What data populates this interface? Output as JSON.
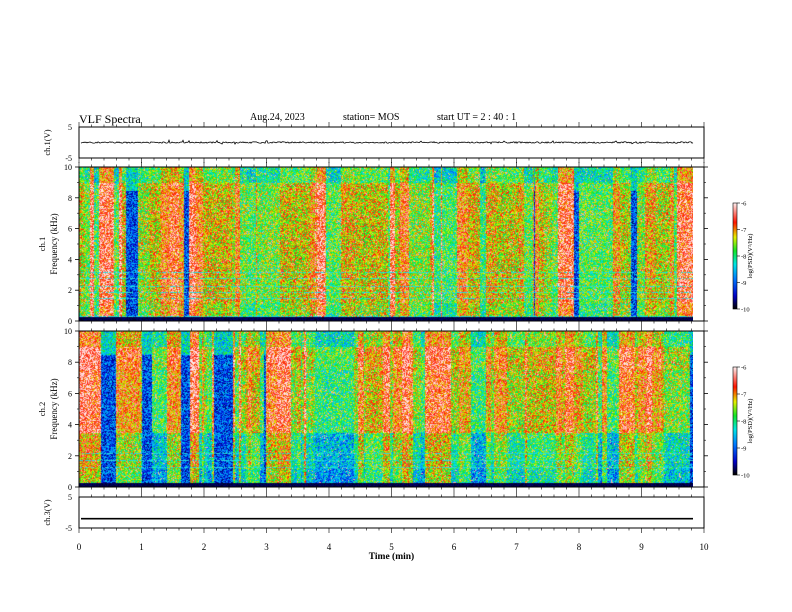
{
  "chart_data": [
    {
      "type": "line",
      "panel": "ch1-waveform",
      "ylabel": "ch.1(V)",
      "ylim": [
        -5,
        5
      ],
      "yticks": [
        "5",
        "-5"
      ],
      "xlim": [
        0,
        10
      ],
      "baseline": 0
    },
    {
      "type": "heatmap",
      "panel": "ch1-spectrogram",
      "ylabel": "ch.1\nFrequency (kHz)",
      "ylim": [
        0,
        10
      ],
      "yticks": [
        "0",
        "2",
        "4",
        "6",
        "8",
        "10"
      ],
      "xlim": [
        0,
        9.85
      ],
      "colorbar": {
        "min": -10,
        "max": -6,
        "ticks": [
          "-6",
          "-7",
          "-8",
          "-9",
          "-10"
        ],
        "label": "log(PSD)(V²/Hz)"
      },
      "note": "dense broadband impulsive emissions 0.3-10 kHz across entire record"
    },
    {
      "type": "heatmap",
      "panel": "ch2-spectrogram",
      "ylabel": "ch.2\nFrequency (kHz)",
      "ylim": [
        0,
        10
      ],
      "yticks": [
        "0",
        "2",
        "4",
        "6",
        "8",
        "10"
      ],
      "xlim": [
        0,
        9.85
      ],
      "colorbar": {
        "min": -10,
        "max": -6,
        "ticks": [
          "-6",
          "-7",
          "-8",
          "-9",
          "-10"
        ],
        "label": "log(PSD)(V²/Hz)"
      }
    },
    {
      "type": "line",
      "panel": "ch3-waveform",
      "ylabel": "ch.3(V)",
      "ylim": [
        -5,
        5
      ],
      "yticks": [
        "5",
        "-5"
      ],
      "xlim": [
        0,
        10
      ],
      "baseline": -2
    }
  ],
  "header": {
    "title": "VLF Spectra",
    "date": "Aug.24, 2023",
    "station": "station= MOS",
    "start": "start  UT =   2 : 40 : 1"
  },
  "xaxis": {
    "label": "Time (min)",
    "ticks": [
      "0",
      "1",
      "2",
      "3",
      "4",
      "5",
      "6",
      "7",
      "8",
      "9",
      "10"
    ]
  },
  "colors": {
    "background": "#ffffff",
    "ink": "#000000",
    "colormap": [
      "#000000",
      "#0000ff",
      "#00ffff",
      "#00ff00",
      "#ffff00",
      "#ff0000",
      "#ffffff"
    ]
  }
}
